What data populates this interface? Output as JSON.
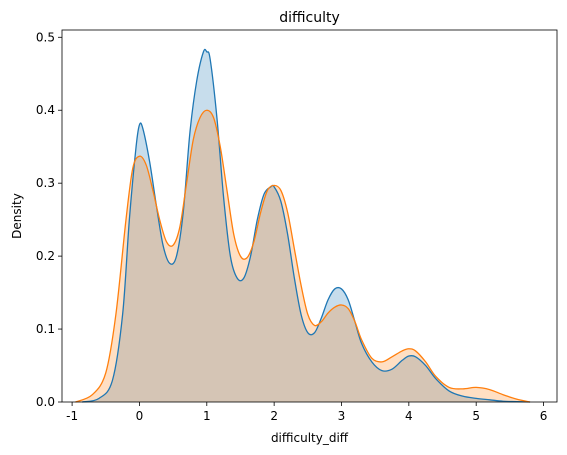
{
  "chart_data": {
    "type": "area",
    "title": "difficulty",
    "xlabel": "difficulty_diff",
    "ylabel": "Density",
    "xlim": [
      -1.15,
      6.2
    ],
    "ylim": [
      0,
      0.51
    ],
    "xticks": [
      -1,
      0,
      1,
      2,
      3,
      4,
      5,
      6
    ],
    "yticks": [
      0.0,
      0.1,
      0.2,
      0.3,
      0.4,
      0.5
    ],
    "ytick_labels": [
      "0.0",
      "0.1",
      "0.2",
      "0.3",
      "0.4",
      "0.5"
    ],
    "grid": false,
    "legend": "none",
    "series": [
      {
        "color": "#1f77b4",
        "fill": "#1f77b4",
        "fill_opacity": 0.25,
        "x": [
          -0.85,
          -0.6,
          -0.4,
          -0.25,
          -0.15,
          -0.05,
          0.0,
          0.05,
          0.15,
          0.25,
          0.35,
          0.45,
          0.55,
          0.65,
          0.75,
          0.85,
          0.95,
          1.0,
          1.05,
          1.15,
          1.25,
          1.35,
          1.45,
          1.55,
          1.65,
          1.75,
          1.85,
          1.95,
          2.0,
          2.1,
          2.2,
          2.3,
          2.4,
          2.5,
          2.6,
          2.7,
          2.8,
          2.9,
          3.0,
          3.1,
          3.2,
          3.3,
          3.45,
          3.6,
          3.75,
          3.9,
          4.0,
          4.1,
          4.25,
          4.4,
          4.6,
          4.8,
          5.0,
          5.2,
          5.4,
          5.6,
          5.8
        ],
        "y": [
          0.0,
          0.005,
          0.03,
          0.12,
          0.25,
          0.35,
          0.38,
          0.375,
          0.33,
          0.27,
          0.215,
          0.19,
          0.2,
          0.26,
          0.37,
          0.44,
          0.48,
          0.48,
          0.47,
          0.39,
          0.28,
          0.2,
          0.17,
          0.17,
          0.2,
          0.25,
          0.285,
          0.295,
          0.295,
          0.275,
          0.23,
          0.17,
          0.12,
          0.095,
          0.095,
          0.115,
          0.14,
          0.155,
          0.155,
          0.14,
          0.11,
          0.08,
          0.055,
          0.043,
          0.045,
          0.057,
          0.063,
          0.062,
          0.05,
          0.032,
          0.015,
          0.008,
          0.005,
          0.003,
          0.001,
          0.0005,
          0.0
        ]
      },
      {
        "color": "#ff7f0e",
        "fill": "#ff7f0e",
        "fill_opacity": 0.25,
        "x": [
          -0.95,
          -0.7,
          -0.5,
          -0.35,
          -0.2,
          -0.1,
          0.0,
          0.1,
          0.2,
          0.3,
          0.4,
          0.5,
          0.6,
          0.7,
          0.8,
          0.9,
          1.0,
          1.1,
          1.2,
          1.3,
          1.4,
          1.5,
          1.6,
          1.7,
          1.8,
          1.9,
          2.0,
          2.1,
          2.2,
          2.3,
          2.4,
          2.5,
          2.6,
          2.7,
          2.8,
          2.9,
          3.0,
          3.1,
          3.2,
          3.3,
          3.45,
          3.6,
          3.75,
          3.9,
          4.0,
          4.1,
          4.25,
          4.4,
          4.6,
          4.8,
          5.0,
          5.2,
          5.4,
          5.6,
          5.8
        ],
        "y": [
          0.0,
          0.01,
          0.04,
          0.12,
          0.25,
          0.32,
          0.337,
          0.325,
          0.29,
          0.25,
          0.22,
          0.215,
          0.24,
          0.3,
          0.36,
          0.39,
          0.4,
          0.39,
          0.35,
          0.29,
          0.23,
          0.2,
          0.198,
          0.22,
          0.26,
          0.29,
          0.297,
          0.29,
          0.26,
          0.21,
          0.16,
          0.12,
          0.105,
          0.11,
          0.122,
          0.13,
          0.133,
          0.128,
          0.11,
          0.085,
          0.06,
          0.055,
          0.062,
          0.07,
          0.073,
          0.07,
          0.055,
          0.035,
          0.02,
          0.018,
          0.02,
          0.017,
          0.01,
          0.004,
          0.0
        ]
      }
    ]
  }
}
